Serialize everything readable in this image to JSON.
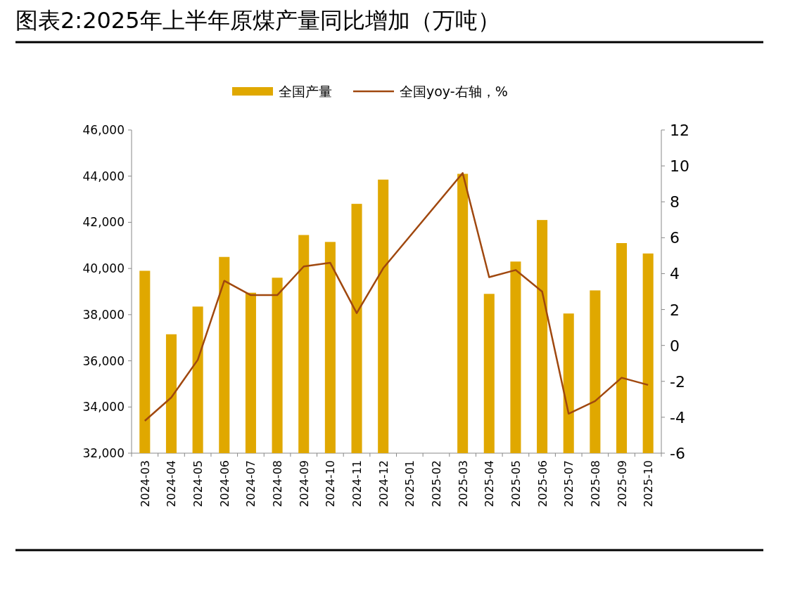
{
  "chart_data": {
    "type": "bar",
    "title": "图表2:2025年上半年原煤产量同比增加（万吨）",
    "categories": [
      "2024-03",
      "2024-04",
      "2024-05",
      "2024-06",
      "2024-07",
      "2024-08",
      "2024-09",
      "2024-10",
      "2024-11",
      "2024-12",
      "2025-01",
      "2025-02",
      "2025-03",
      "2025-04",
      "2025-05",
      "2025-06",
      "2025-07",
      "2025-08",
      "2025-09",
      "2025-10"
    ],
    "series": [
      {
        "name": "全国产量",
        "color": "#e0a800",
        "values": [
          39900,
          37150,
          38350,
          40500,
          38950,
          39600,
          41450,
          41150,
          42800,
          43850,
          null,
          null,
          44100,
          38900,
          40300,
          42100,
          38050,
          39050,
          41100,
          40650
        ]
      },
      {
        "name": "全国yoy-右轴，%",
        "type": "line",
        "axis": "y2",
        "color": "#a0480f",
        "values": [
          -4.2,
          -2.9,
          -0.8,
          3.6,
          2.8,
          2.8,
          4.4,
          4.6,
          1.8,
          4.3,
          null,
          null,
          9.6,
          3.8,
          4.2,
          3.0,
          -3.8,
          -3.1,
          -1.8,
          -2.2
        ]
      }
    ],
    "ylim": [
      32000,
      46000
    ],
    "yticks": [
      {
        "value": 32000,
        "label": "32,000"
      },
      {
        "value": 34000,
        "label": "34,000"
      },
      {
        "value": 36000,
        "label": "36,000"
      },
      {
        "value": 38000,
        "label": "38,000"
      },
      {
        "value": 40000,
        "label": "40,000"
      },
      {
        "value": 42000,
        "label": "42,000"
      },
      {
        "value": 44000,
        "label": "44,000"
      },
      {
        "value": 46000,
        "label": "46,000"
      }
    ],
    "y2lim": [
      -6,
      12
    ],
    "y2ticks": [
      -6,
      -4,
      -2,
      0,
      2,
      4,
      6,
      8,
      10,
      12
    ],
    "legend": "top",
    "grid": false,
    "marker": "none",
    "line_style": "solid"
  }
}
